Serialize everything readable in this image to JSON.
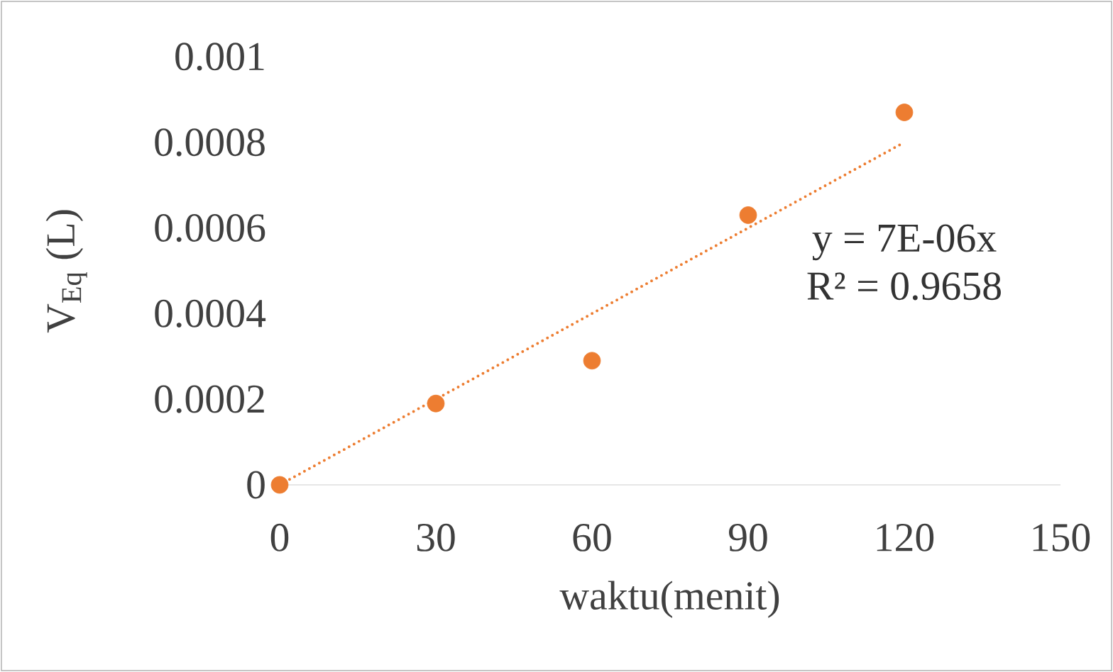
{
  "chart_data": {
    "type": "scatter",
    "xlabel": "waktu(menit)",
    "ylabel": "V$_{Eq}$ (L)",
    "x": [
      0,
      30,
      60,
      90,
      120
    ],
    "series": [
      {
        "color": "#ed7d31",
        "marker": "circle",
        "values": [
          0,
          0.00019,
          0.00029,
          0.00063,
          0.00087
        ]
      },
      {
        "type": "line",
        "color": "#ed7d31",
        "line_style": "dotted",
        "marker": "none",
        "x": [
          0,
          120
        ],
        "values": [
          0,
          0.0008
        ]
      }
    ],
    "xlim": [
      0,
      150
    ],
    "xticks": [
      0,
      30,
      60,
      90,
      120,
      150
    ],
    "ylim": [
      0,
      0.001
    ],
    "yticks": [
      0,
      0.0002,
      0.0004,
      0.0006,
      0.0008,
      0.001
    ],
    "grid": false,
    "annotations": [
      "y = 7E-06x",
      "R² = 0.9658"
    ]
  }
}
